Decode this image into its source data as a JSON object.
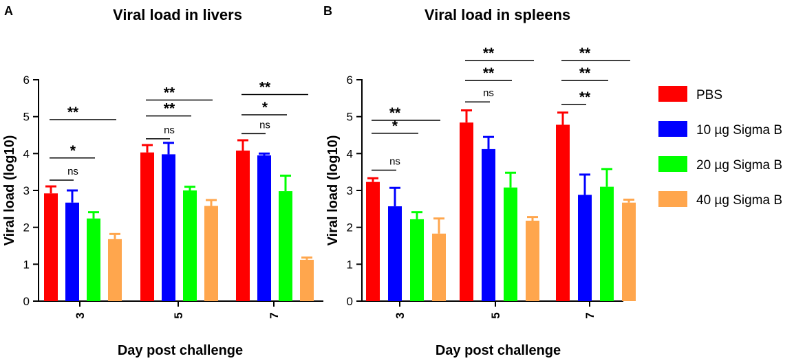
{
  "panels": [
    "A",
    "B"
  ],
  "legend": [
    {
      "name": "PBS",
      "color": "#ff0000"
    },
    {
      "name": "10 µg Sigma B",
      "color": "#0000ff"
    },
    {
      "name": "20 µg Sigma B",
      "color": "#00ff00"
    },
    {
      "name": "40 µg Sigma B",
      "color": "#ffa64d"
    }
  ],
  "chart_data": [
    {
      "type": "bar",
      "panel": "A",
      "title": "Viral load in livers",
      "xlabel": "Day post challenge",
      "ylabel": "Viral load (log10)",
      "ylim": [
        0,
        6
      ],
      "yticks": [
        "0",
        "1",
        "2",
        "3",
        "4",
        "5",
        "6"
      ],
      "categories": [
        "3",
        "5",
        "7"
      ],
      "series": [
        {
          "name": "PBS",
          "color": "#ff0000",
          "values": [
            2.92,
            4.03,
            4.08
          ],
          "errors": [
            0.19,
            0.2,
            0.28
          ]
        },
        {
          "name": "10 µg Sigma B",
          "color": "#0000ff",
          "values": [
            2.67,
            3.98,
            3.95
          ],
          "errors": [
            0.33,
            0.31,
            0.05
          ]
        },
        {
          "name": "20 µg Sigma B",
          "color": "#00ff00",
          "values": [
            2.24,
            3.0,
            2.98
          ],
          "errors": [
            0.17,
            0.1,
            0.42
          ]
        },
        {
          "name": "40 µg Sigma B",
          "color": "#ffa64d",
          "values": [
            1.68,
            2.58,
            1.12
          ],
          "errors": [
            0.14,
            0.16,
            0.06
          ]
        }
      ],
      "significance": [
        {
          "category": "3",
          "from": 0,
          "to": 1,
          "label": "ns",
          "level": 3.28
        },
        {
          "category": "3",
          "from": 0,
          "to": 2,
          "label": "*",
          "level": 3.88
        },
        {
          "category": "3",
          "from": 0,
          "to": 3,
          "label": "**",
          "level": 4.92
        },
        {
          "category": "5",
          "from": 0,
          "to": 1,
          "label": "ns",
          "level": 4.4
        },
        {
          "category": "5",
          "from": 0,
          "to": 2,
          "label": "**",
          "level": 5.02
        },
        {
          "category": "5",
          "from": 0,
          "to": 3,
          "label": "**",
          "level": 5.45
        },
        {
          "category": "7",
          "from": 0,
          "to": 1,
          "label": "ns",
          "level": 4.54
        },
        {
          "category": "7",
          "from": 0,
          "to": 2,
          "label": "*",
          "level": 5.05
        },
        {
          "category": "7",
          "from": 0,
          "to": 3,
          "label": "**",
          "level": 5.6
        }
      ]
    },
    {
      "type": "bar",
      "panel": "B",
      "title": "Viral load in spleens",
      "xlabel": "Day post challenge",
      "ylabel": "Viral load (log10)",
      "ylim": [
        0,
        6
      ],
      "yticks": [
        "0",
        "1",
        "2",
        "3",
        "4",
        "5",
        "6"
      ],
      "categories": [
        "3",
        "5",
        "7"
      ],
      "series": [
        {
          "name": "PBS",
          "color": "#ff0000",
          "values": [
            3.23,
            4.84,
            4.78
          ],
          "errors": [
            0.1,
            0.33,
            0.33
          ]
        },
        {
          "name": "10 µg Sigma B",
          "color": "#0000ff",
          "values": [
            2.57,
            4.12,
            2.88
          ],
          "errors": [
            0.5,
            0.33,
            0.55
          ]
        },
        {
          "name": "20 µg Sigma B",
          "color": "#00ff00",
          "values": [
            2.22,
            3.08,
            3.1
          ],
          "errors": [
            0.19,
            0.4,
            0.48
          ]
        },
        {
          "name": "40 µg Sigma B",
          "color": "#ffa64d",
          "values": [
            1.83,
            2.18,
            2.67
          ],
          "errors": [
            0.41,
            0.1,
            0.08
          ]
        }
      ],
      "significance": [
        {
          "category": "3",
          "from": 0,
          "to": 1,
          "label": "ns",
          "level": 3.55
        },
        {
          "category": "3",
          "from": 0,
          "to": 2,
          "label": "*",
          "level": 4.55
        },
        {
          "category": "3",
          "from": 0,
          "to": 3,
          "label": "**",
          "level": 4.9
        },
        {
          "category": "5",
          "from": 0,
          "to": 1,
          "label": "ns",
          "level": 5.4
        },
        {
          "category": "5",
          "from": 0,
          "to": 2,
          "label": "**",
          "level": 5.98
        },
        {
          "category": "5",
          "from": 0,
          "to": 3,
          "label": "**",
          "level": 6.52
        },
        {
          "category": "7",
          "from": 0,
          "to": 1,
          "label": "**",
          "level": 5.33
        },
        {
          "category": "7",
          "from": 0,
          "to": 2,
          "label": "**",
          "level": 5.98
        },
        {
          "category": "7",
          "from": 0,
          "to": 3,
          "label": "**",
          "level": 6.52
        }
      ]
    }
  ]
}
